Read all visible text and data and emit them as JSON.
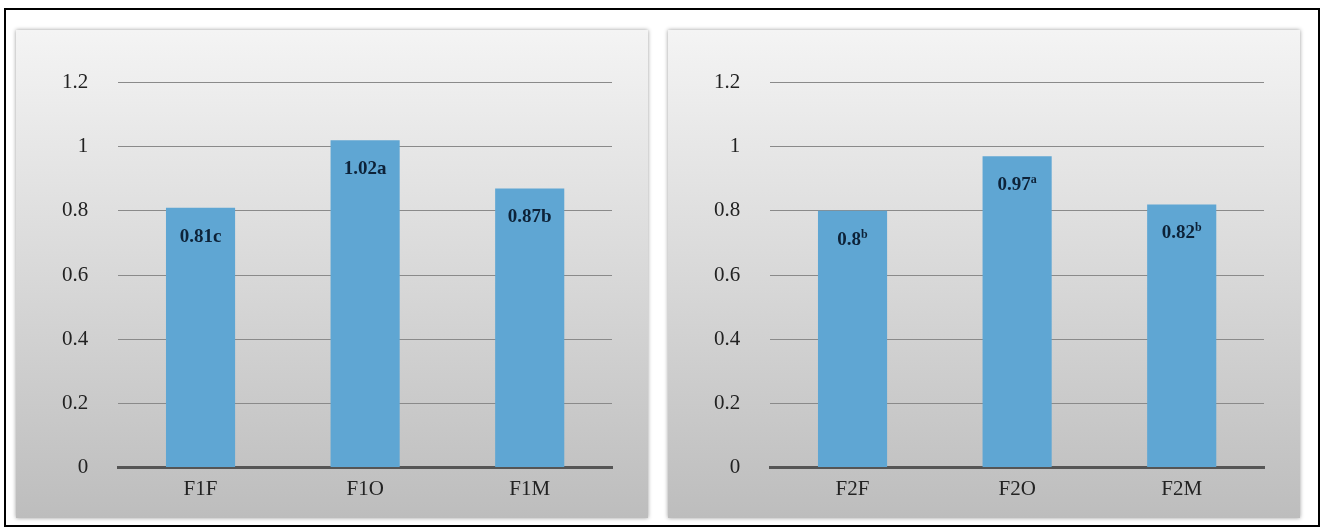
{
  "chart_data": [
    {
      "type": "bar",
      "categories": [
        "F1F",
        "F1O",
        "F1M"
      ],
      "values": [
        0.81,
        1.02,
        0.87
      ],
      "value_labels": [
        "0.81c",
        "1.02a",
        "0.87b"
      ],
      "color": "#5fa6d3",
      "ylim": [
        0,
        1.2
      ],
      "yticks": [
        0,
        0.2,
        0.4,
        0.6,
        0.8,
        1,
        1.2
      ],
      "grid": "y",
      "legend": false
    },
    {
      "type": "bar",
      "categories": [
        "F2F",
        "F2O",
        "F2M"
      ],
      "values": [
        0.8,
        0.97,
        0.82
      ],
      "value_labels": [
        "0.8$^{b}$",
        "0.97$^{a}$",
        "0.82$^{b}$"
      ],
      "color": "#5fa6d3",
      "ylim": [
        0,
        1.2
      ],
      "yticks": [
        0,
        0.2,
        0.4,
        0.6,
        0.8,
        1,
        1.2
      ],
      "grid": "y",
      "legend": false
    }
  ]
}
